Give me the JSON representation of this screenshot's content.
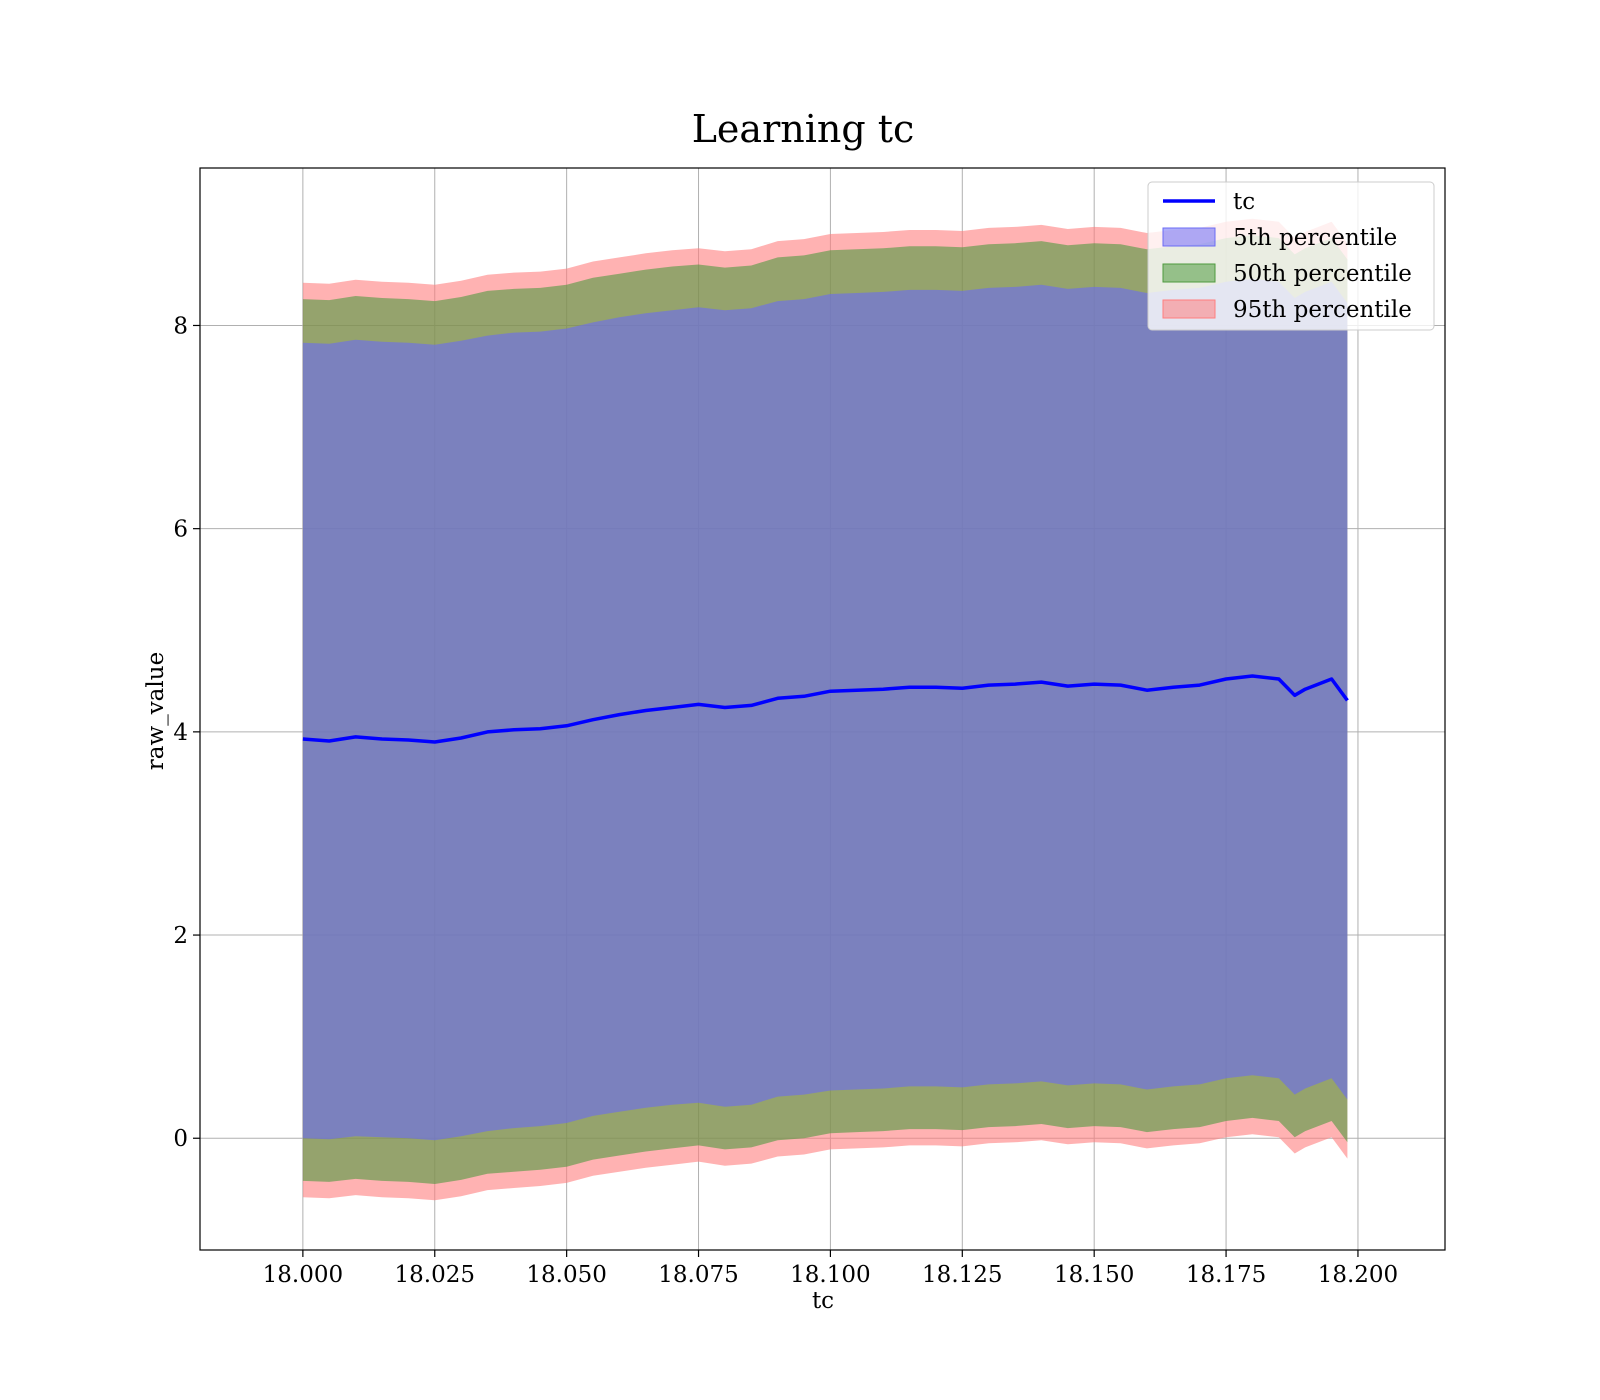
{
  "chart_data": {
    "type": "area",
    "title": "Learning tc",
    "xlabel": "tc",
    "ylabel": "raw_value",
    "xlim": [
      17.9805,
      18.2165
    ],
    "ylim": [
      -1.1,
      9.55
    ],
    "x_ticks": [
      "18.000",
      "18.025",
      "18.050",
      "18.075",
      "18.100",
      "18.125",
      "18.150",
      "18.175",
      "18.200"
    ],
    "x_tick_values": [
      18.0,
      18.025,
      18.05,
      18.075,
      18.1,
      18.125,
      18.15,
      18.175,
      18.2
    ],
    "y_ticks": [
      "0",
      "2",
      "4",
      "6",
      "8"
    ],
    "y_tick_values": [
      0,
      2,
      4,
      6,
      8
    ],
    "grid": true,
    "legend_position": "upper right",
    "x": [
      18.0,
      18.005,
      18.01,
      18.015,
      18.02,
      18.025,
      18.03,
      18.035,
      18.04,
      18.045,
      18.05,
      18.055,
      18.06,
      18.065,
      18.07,
      18.075,
      18.08,
      18.085,
      18.09,
      18.095,
      18.1,
      18.105,
      18.11,
      18.115,
      18.12,
      18.125,
      18.13,
      18.135,
      18.14,
      18.145,
      18.15,
      18.155,
      18.16,
      18.165,
      18.17,
      18.175,
      18.18,
      18.185,
      18.188,
      18.19,
      18.195,
      18.198
    ],
    "series": [
      {
        "name": "tc",
        "kind": "line",
        "color": "#0000ff",
        "values": [
          3.93,
          3.91,
          3.95,
          3.93,
          3.92,
          3.9,
          3.94,
          4.0,
          4.02,
          4.03,
          4.06,
          4.12,
          4.17,
          4.21,
          4.24,
          4.27,
          4.24,
          4.26,
          4.33,
          4.35,
          4.4,
          4.41,
          4.42,
          4.44,
          4.44,
          4.43,
          4.46,
          4.47,
          4.49,
          4.45,
          4.47,
          4.46,
          4.41,
          4.44,
          4.46,
          4.52,
          4.55,
          4.52,
          4.36,
          4.42,
          4.52,
          4.31
        ]
      },
      {
        "name": "5th percentile",
        "kind": "band",
        "color": "#6b6bf5",
        "lower": [
          0.0,
          -0.01,
          0.02,
          0.01,
          0.0,
          -0.02,
          0.02,
          0.07,
          0.1,
          0.12,
          0.15,
          0.22,
          0.26,
          0.3,
          0.33,
          0.35,
          0.31,
          0.33,
          0.41,
          0.43,
          0.47,
          0.48,
          0.49,
          0.51,
          0.51,
          0.5,
          0.53,
          0.54,
          0.56,
          0.52,
          0.54,
          0.53,
          0.48,
          0.51,
          0.53,
          0.59,
          0.62,
          0.59,
          0.43,
          0.49,
          0.59,
          0.38
        ],
        "upper": [
          7.83,
          7.82,
          7.86,
          7.84,
          7.83,
          7.81,
          7.85,
          7.9,
          7.93,
          7.94,
          7.97,
          8.03,
          8.08,
          8.12,
          8.15,
          8.18,
          8.15,
          8.17,
          8.24,
          8.26,
          8.31,
          8.32,
          8.33,
          8.35,
          8.35,
          8.34,
          8.37,
          8.38,
          8.4,
          8.36,
          8.38,
          8.37,
          8.32,
          8.35,
          8.37,
          8.43,
          8.46,
          8.43,
          8.27,
          8.33,
          8.43,
          8.22
        ]
      },
      {
        "name": "50th percentile",
        "kind": "band",
        "color": "#4f9a3f",
        "lower": [
          -0.42,
          -0.43,
          -0.4,
          -0.42,
          -0.43,
          -0.45,
          -0.41,
          -0.35,
          -0.33,
          -0.31,
          -0.28,
          -0.21,
          -0.17,
          -0.13,
          -0.1,
          -0.07,
          -0.11,
          -0.09,
          -0.02,
          0.0,
          0.05,
          0.06,
          0.07,
          0.09,
          0.09,
          0.08,
          0.11,
          0.12,
          0.14,
          0.1,
          0.12,
          0.11,
          0.06,
          0.09,
          0.11,
          0.17,
          0.2,
          0.17,
          0.01,
          0.07,
          0.17,
          -0.04
        ],
        "upper": [
          8.26,
          8.25,
          8.29,
          8.27,
          8.26,
          8.24,
          8.28,
          8.34,
          8.36,
          8.37,
          8.4,
          8.47,
          8.51,
          8.55,
          8.58,
          8.6,
          8.57,
          8.59,
          8.67,
          8.69,
          8.74,
          8.75,
          8.76,
          8.78,
          8.78,
          8.77,
          8.8,
          8.81,
          8.83,
          8.79,
          8.81,
          8.8,
          8.75,
          8.78,
          8.8,
          8.86,
          8.89,
          8.86,
          8.7,
          8.76,
          8.86,
          8.65
        ]
      },
      {
        "name": "95th percentile",
        "kind": "band",
        "color": "#ff7f7f",
        "lower": [
          -0.58,
          -0.59,
          -0.56,
          -0.58,
          -0.59,
          -0.61,
          -0.57,
          -0.51,
          -0.49,
          -0.47,
          -0.44,
          -0.37,
          -0.33,
          -0.29,
          -0.26,
          -0.23,
          -0.27,
          -0.25,
          -0.18,
          -0.16,
          -0.11,
          -0.1,
          -0.09,
          -0.07,
          -0.07,
          -0.08,
          -0.05,
          -0.04,
          -0.02,
          -0.06,
          -0.04,
          -0.05,
          -0.1,
          -0.07,
          -0.05,
          0.01,
          0.04,
          0.01,
          -0.15,
          -0.09,
          0.01,
          -0.2
        ],
        "upper": [
          8.42,
          8.41,
          8.45,
          8.43,
          8.42,
          8.4,
          8.44,
          8.5,
          8.52,
          8.53,
          8.56,
          8.63,
          8.67,
          8.71,
          8.74,
          8.76,
          8.73,
          8.75,
          8.83,
          8.85,
          8.9,
          8.91,
          8.92,
          8.94,
          8.94,
          8.93,
          8.96,
          8.97,
          8.99,
          8.95,
          8.97,
          8.96,
          8.91,
          8.94,
          8.96,
          9.02,
          9.05,
          9.02,
          8.86,
          8.92,
          9.02,
          8.81
        ]
      }
    ]
  }
}
